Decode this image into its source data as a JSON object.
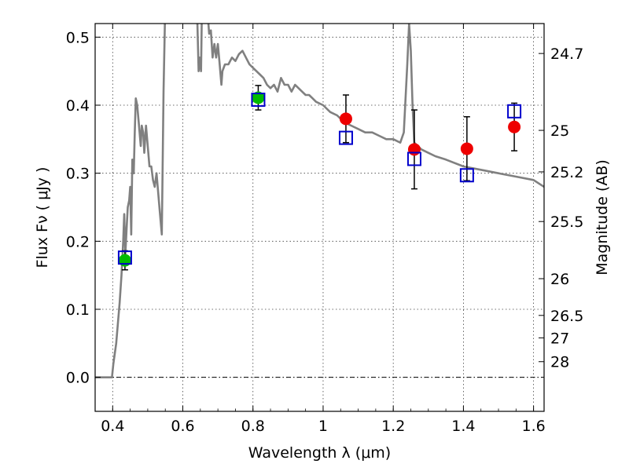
{
  "chart_data": {
    "type": "scatter",
    "title": "",
    "xlabel": "Wavelength  λ (μm)",
    "ylabel": "Flux  Fν  ( μJy )",
    "y2label": "Magnitude (AB)",
    "xlim": [
      0.35,
      1.63
    ],
    "ylim": [
      -0.05,
      0.52
    ],
    "grid": true,
    "x_ticks": [
      0.4,
      0.6,
      0.8,
      1.0,
      1.2,
      1.4,
      1.6
    ],
    "x_tick_labels": [
      "0.4",
      "0.6",
      "0.8",
      "1",
      "1.2",
      "1.4",
      "1.6"
    ],
    "y_ticks": [
      0.0,
      0.1,
      0.2,
      0.3,
      0.4,
      0.5
    ],
    "y_tick_labels": [
      "0.0",
      "0.1",
      "0.2",
      "0.3",
      "0.4",
      "0.5"
    ],
    "magnitude_ticks": [
      {
        "label": "24.7",
        "flux": 0.476
      },
      {
        "label": "25",
        "flux": 0.363
      },
      {
        "label": "25.2",
        "flux": 0.302
      },
      {
        "label": "25.5",
        "flux": 0.229
      },
      {
        "label": "26",
        "flux": 0.145
      },
      {
        "label": "26.5",
        "flux": 0.091
      },
      {
        "label": "27",
        "flux": 0.058
      },
      {
        "label": "28",
        "flux": 0.023
      }
    ],
    "colors": {
      "model": "#808080",
      "green_points": "#00bb00",
      "red_points": "#ee0000",
      "model_boxes": "#0000cc",
      "errorbars": "#000000",
      "zero_line": "#000000"
    },
    "series": [
      {
        "type": "line",
        "points": [
          [
            0.35,
            0.0
          ],
          [
            0.39,
            0.0
          ],
          [
            0.398,
            0.0
          ],
          [
            0.402,
            0.02
          ],
          [
            0.41,
            0.05
          ],
          [
            0.42,
            0.11
          ],
          [
            0.425,
            0.15
          ],
          [
            0.43,
            0.2
          ],
          [
            0.433,
            0.24
          ],
          [
            0.436,
            0.18
          ],
          [
            0.44,
            0.22
          ],
          [
            0.443,
            0.25
          ],
          [
            0.447,
            0.26
          ],
          [
            0.45,
            0.28
          ],
          [
            0.453,
            0.21
          ],
          [
            0.456,
            0.32
          ],
          [
            0.46,
            0.3
          ],
          [
            0.463,
            0.36
          ],
          [
            0.466,
            0.41
          ],
          [
            0.47,
            0.4
          ],
          [
            0.475,
            0.37
          ],
          [
            0.48,
            0.34
          ],
          [
            0.483,
            0.37
          ],
          [
            0.487,
            0.36
          ],
          [
            0.49,
            0.33
          ],
          [
            0.495,
            0.37
          ],
          [
            0.5,
            0.34
          ],
          [
            0.505,
            0.31
          ],
          [
            0.51,
            0.31
          ],
          [
            0.515,
            0.29
          ],
          [
            0.52,
            0.28
          ],
          [
            0.525,
            0.3
          ],
          [
            0.53,
            0.27
          ],
          [
            0.535,
            0.24
          ],
          [
            0.54,
            0.21
          ],
          [
            0.545,
            0.42
          ],
          [
            0.55,
            0.55
          ],
          [
            0.56,
            0.6
          ],
          [
            0.6,
            0.62
          ],
          [
            0.64,
            0.55
          ],
          [
            0.645,
            0.45
          ],
          [
            0.648,
            0.47
          ],
          [
            0.652,
            0.45
          ],
          [
            0.656,
            0.6
          ],
          [
            0.66,
            0.55
          ],
          [
            0.67,
            0.54
          ],
          [
            0.675,
            0.505
          ],
          [
            0.68,
            0.51
          ],
          [
            0.685,
            0.47
          ],
          [
            0.69,
            0.49
          ],
          [
            0.695,
            0.47
          ],
          [
            0.7,
            0.49
          ],
          [
            0.705,
            0.46
          ],
          [
            0.71,
            0.43
          ],
          [
            0.713,
            0.45
          ],
          [
            0.72,
            0.46
          ],
          [
            0.73,
            0.46
          ],
          [
            0.74,
            0.47
          ],
          [
            0.75,
            0.465
          ],
          [
            0.76,
            0.475
          ],
          [
            0.77,
            0.48
          ],
          [
            0.78,
            0.47
          ],
          [
            0.79,
            0.46
          ],
          [
            0.8,
            0.455
          ],
          [
            0.81,
            0.45
          ],
          [
            0.82,
            0.445
          ],
          [
            0.83,
            0.44
          ],
          [
            0.84,
            0.43
          ],
          [
            0.85,
            0.425
          ],
          [
            0.86,
            0.43
          ],
          [
            0.87,
            0.42
          ],
          [
            0.88,
            0.44
          ],
          [
            0.89,
            0.43
          ],
          [
            0.9,
            0.43
          ],
          [
            0.91,
            0.42
          ],
          [
            0.92,
            0.43
          ],
          [
            0.93,
            0.425
          ],
          [
            0.94,
            0.42
          ],
          [
            0.95,
            0.415
          ],
          [
            0.96,
            0.415
          ],
          [
            0.97,
            0.41
          ],
          [
            0.98,
            0.405
          ],
          [
            1.0,
            0.4
          ],
          [
            1.02,
            0.39
          ],
          [
            1.04,
            0.385
          ],
          [
            1.06,
            0.375
          ],
          [
            1.08,
            0.37
          ],
          [
            1.1,
            0.365
          ],
          [
            1.12,
            0.36
          ],
          [
            1.14,
            0.36
          ],
          [
            1.16,
            0.355
          ],
          [
            1.18,
            0.35
          ],
          [
            1.2,
            0.35
          ],
          [
            1.22,
            0.345
          ],
          [
            1.23,
            0.36
          ],
          [
            1.24,
            0.46
          ],
          [
            1.245,
            0.52
          ],
          [
            1.25,
            0.48
          ],
          [
            1.255,
            0.4
          ],
          [
            1.26,
            0.345
          ],
          [
            1.28,
            0.335
          ],
          [
            1.3,
            0.33
          ],
          [
            1.32,
            0.325
          ],
          [
            1.35,
            0.32
          ],
          [
            1.4,
            0.31
          ],
          [
            1.45,
            0.305
          ],
          [
            1.5,
            0.3
          ],
          [
            1.55,
            0.295
          ],
          [
            1.6,
            0.29
          ],
          [
            1.63,
            0.28
          ]
        ]
      },
      {
        "type": "scatter-circle",
        "color": "green",
        "points": [
          {
            "x": 0.435,
            "y": 0.172,
            "err": 0.014
          },
          {
            "x": 0.815,
            "y": 0.411,
            "err": 0.018
          }
        ]
      },
      {
        "type": "scatter-circle",
        "color": "red",
        "points": [
          {
            "x": 1.065,
            "y": 0.38,
            "err": 0.035
          },
          {
            "x": 1.26,
            "y": 0.335,
            "err": 0.058
          },
          {
            "x": 1.41,
            "y": 0.336,
            "err": 0.047
          },
          {
            "x": 1.545,
            "y": 0.368,
            "err": 0.035
          }
        ]
      },
      {
        "type": "scatter-square",
        "color": "blue",
        "points": [
          {
            "x": 0.435,
            "y": 0.176
          },
          {
            "x": 0.815,
            "y": 0.408
          },
          {
            "x": 1.065,
            "y": 0.352
          },
          {
            "x": 1.26,
            "y": 0.321
          },
          {
            "x": 1.41,
            "y": 0.297
          },
          {
            "x": 1.545,
            "y": 0.391
          }
        ]
      }
    ]
  }
}
